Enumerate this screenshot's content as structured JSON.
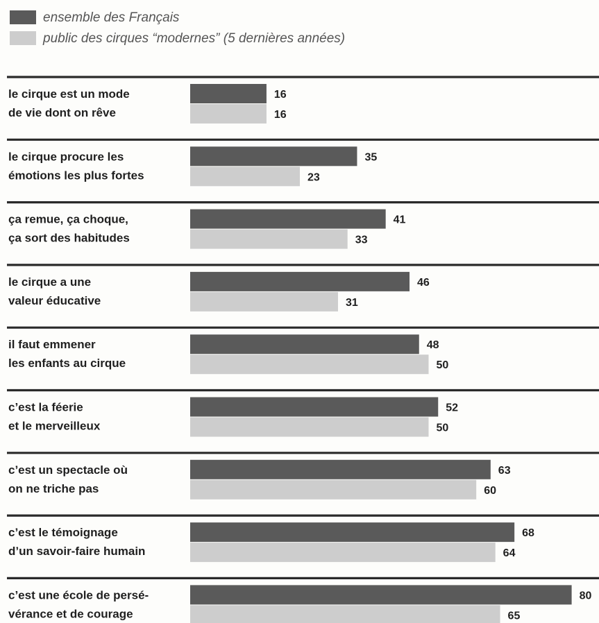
{
  "chart_data": {
    "type": "bar",
    "orientation": "horizontal",
    "legend_placement": "top-left",
    "series": [
      {
        "name": "ensemble des Français",
        "color": "#5a5a5a",
        "values": [
          16,
          35,
          41,
          46,
          48,
          52,
          63,
          68,
          80
        ]
      },
      {
        "name": "public des cirques “modernes” (5 dernières années)",
        "color": "#cdcdcd",
        "values": [
          16,
          23,
          33,
          31,
          50,
          50,
          60,
          64,
          65
        ]
      }
    ],
    "categories": [
      [
        "le cirque est un mode",
        "de vie dont on rêve"
      ],
      [
        "le cirque procure les",
        "émotions les plus fortes"
      ],
      [
        "ça remue, ça choque,",
        "ça sort des habitudes"
      ],
      [
        "le cirque a une",
        "valeur éducative"
      ],
      [
        "il faut emmener",
        "les enfants au cirque"
      ],
      [
        "c’est la féerie",
        "et le merveilleux"
      ],
      [
        "c’est un spectacle où",
        "on ne triche pas"
      ],
      [
        "c’est le témoignage",
        "d’un savoir-faire humain"
      ],
      [
        "c’est une école de persé-",
        "vérance et de courage"
      ]
    ],
    "xlim": [
      0,
      80
    ],
    "grid": false
  }
}
